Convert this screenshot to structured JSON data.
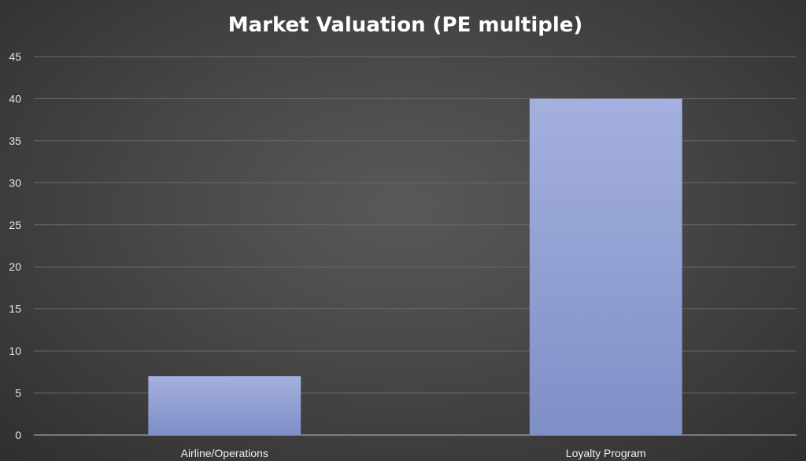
{
  "chart_data": {
    "type": "bar",
    "title": "Market Valuation (PE multiple)",
    "categories": [
      "Airline/Operations",
      "Loyalty Program"
    ],
    "values": [
      7,
      40
    ],
    "xlabel": "",
    "ylabel": "",
    "ylim": [
      0,
      45
    ],
    "yticks": [
      0,
      5,
      10,
      15,
      20,
      25,
      30,
      35,
      40,
      45
    ],
    "grid": true,
    "legend": "none",
    "colors": {
      "bar_top": "#a4b0de",
      "bar_bottom": "#7f8fc7",
      "background": "#4a4a4a",
      "gridline": "#6a6a6a",
      "text": "#ffffff"
    }
  }
}
